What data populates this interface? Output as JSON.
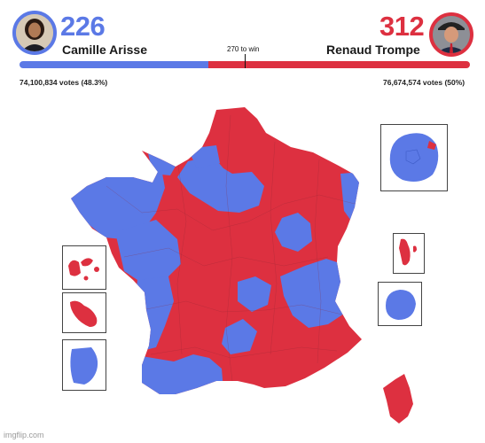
{
  "header": {
    "left": {
      "electoral_votes": "226",
      "name": "Camille Arisse",
      "votes": "74,100,834 votes (48.3%)",
      "color": "#5b79e6"
    },
    "right": {
      "electoral_votes": "312",
      "name": "Renaud Trompe",
      "votes": "76,674,574 votes (50%)",
      "color": "#dd3040"
    },
    "threshold_label": "270 to win",
    "bar_share": {
      "left": 0.42,
      "right": 0.58
    }
  },
  "map": {
    "mainland_colors": [
      "#5b79e6",
      "#dd3040"
    ],
    "insets": [
      {
        "id": "paris",
        "dominant_color": "#5b79e6"
      },
      {
        "id": "guadeloupe",
        "dominant_color": "#dd3040"
      },
      {
        "id": "martinique",
        "dominant_color": "#dd3040"
      },
      {
        "id": "guyane",
        "dominant_color": "#5b79e6"
      },
      {
        "id": "mayotte",
        "dominant_color": "#dd3040"
      },
      {
        "id": "reunion",
        "dominant_color": "#5b79e6"
      },
      {
        "id": "corse",
        "dominant_color": "#dd3040"
      }
    ]
  },
  "watermark": "imgflip.com"
}
